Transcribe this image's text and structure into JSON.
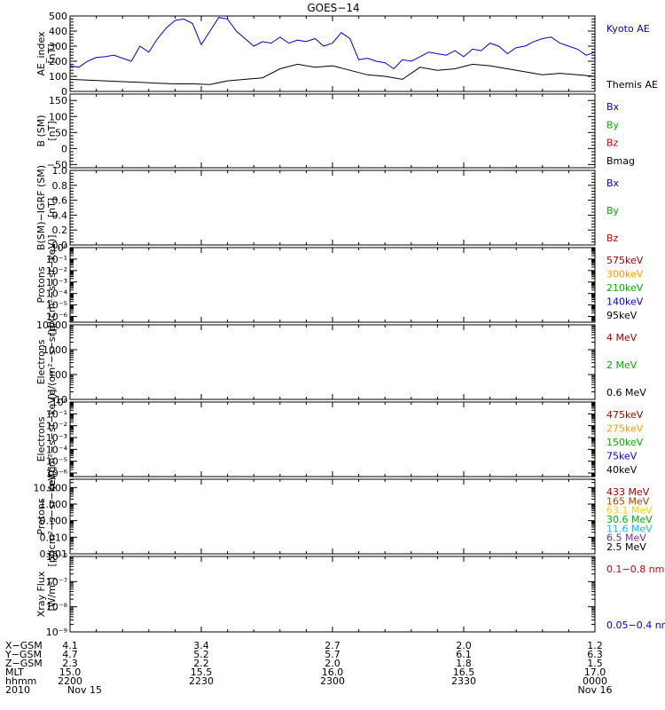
{
  "title": "GOES−14",
  "colors": {
    "black": "#000000",
    "blue": "#0000cc",
    "green": "#00b000",
    "red": "#cc0000",
    "orange": "#ff9900",
    "yellow": "#e8d800",
    "cyan": "#00bfff",
    "purple": "#6a2c9a",
    "darkred": "#a00000",
    "brown": "#b04000"
  },
  "chart_data": [
    {
      "panel": "ae",
      "type": "line",
      "ylabel": "AE_index",
      "yunit": "[nT]",
      "ylim": [
        0,
        500
      ],
      "yticks": [
        "0",
        "100",
        "200",
        "300",
        "400",
        "500"
      ],
      "yticks_values": [
        0,
        100,
        200,
        300,
        400,
        500
      ],
      "scale": "linear",
      "xlim": [
        0,
        120
      ],
      "series": [
        {
          "name": "Kyoto AE",
          "color": "blue",
          "x": [
            0,
            2,
            4,
            6,
            8,
            10,
            12,
            14,
            16,
            18,
            20,
            22,
            24,
            26,
            28,
            30,
            32,
            34,
            36,
            38,
            40,
            42,
            44,
            46,
            48,
            50,
            52,
            54,
            56,
            58,
            60,
            62,
            64,
            66,
            68,
            70,
            72,
            74,
            76,
            78,
            80,
            82,
            84,
            86,
            88,
            90,
            92,
            94,
            96,
            98,
            100,
            102,
            104,
            106,
            108,
            110,
            112,
            114,
            116,
            118,
            120
          ],
          "y": [
            170,
            160,
            200,
            225,
            230,
            240,
            220,
            200,
            300,
            260,
            350,
            420,
            470,
            480,
            450,
            310,
            400,
            490,
            480,
            400,
            350,
            300,
            330,
            320,
            360,
            320,
            340,
            330,
            350,
            300,
            320,
            390,
            350,
            210,
            220,
            200,
            190,
            150,
            210,
            200,
            230,
            260,
            250,
            240,
            270,
            230,
            280,
            270,
            320,
            300,
            250,
            290,
            300,
            330,
            350,
            360,
            320,
            300,
            280,
            240,
            260
          ]
        },
        {
          "name": "Themis AE",
          "color": "black",
          "x": [
            0,
            4,
            8,
            12,
            16,
            20,
            24,
            28,
            32,
            36,
            40,
            44,
            48,
            52,
            56,
            60,
            64,
            68,
            72,
            76,
            80,
            84,
            88,
            92,
            96,
            100,
            104,
            108,
            112,
            116,
            120
          ],
          "y": [
            80,
            75,
            70,
            65,
            60,
            55,
            50,
            50,
            45,
            70,
            80,
            90,
            150,
            180,
            160,
            170,
            140,
            110,
            100,
            80,
            160,
            140,
            150,
            180,
            170,
            150,
            130,
            110,
            120,
            110,
            100
          ]
        }
      ]
    },
    {
      "panel": "b",
      "type": "line",
      "ylabel": "B (SM)",
      "yunit": "[nT]",
      "ylim": [
        -60,
        170
      ],
      "yticks": [
        "−50",
        "0",
        "50",
        "100",
        "150"
      ],
      "yticks_values": [
        -50,
        0,
        50,
        100,
        150
      ],
      "scale": "linear",
      "series": [
        {
          "name": "Bx",
          "color": "blue"
        },
        {
          "name": "By",
          "color": "green"
        },
        {
          "name": "Bz",
          "color": "red"
        },
        {
          "name": "Bmag",
          "color": "black"
        }
      ]
    },
    {
      "panel": "igrf",
      "type": "line",
      "ylabel": "B(SM)−IGRF (SM)",
      "yunit": "[nT]",
      "ylim": [
        0,
        1
      ],
      "yticks": [
        "0.0",
        "0.2",
        "0.4",
        "0.6",
        "0.8",
        "1.0"
      ],
      "yticks_values": [
        0,
        0.2,
        0.4,
        0.6,
        0.8,
        1.0
      ],
      "scale": "linear",
      "series": [
        {
          "name": "Bx",
          "color": "blue"
        },
        {
          "name": "By",
          "color": "green"
        },
        {
          "name": "Bz",
          "color": "red"
        }
      ]
    },
    {
      "panel": "protons1",
      "type": "line",
      "ylabel": "Protons",
      "yunit": "[p/(cm²−s−sr−keV)]",
      "ylim": [
        -6.5,
        0
      ],
      "yticks": [
        "10⁻⁶",
        "10⁻⁵",
        "10⁻⁴",
        "10⁻³",
        "10⁻²",
        "10⁻¹",
        "10⁰"
      ],
      "yticks_values": [
        -6,
        -5,
        -4,
        -3,
        -2,
        -1,
        0
      ],
      "scale": "log",
      "series": [
        {
          "name": "575keV",
          "color": "darkred"
        },
        {
          "name": "300keV",
          "color": "orange"
        },
        {
          "name": "210keV",
          "color": "green"
        },
        {
          "name": "140keV",
          "color": "blue"
        },
        {
          "name": "95keV",
          "color": "black"
        }
      ]
    },
    {
      "panel": "electrons1",
      "type": "line",
      "ylabel": "Electrons",
      "yunit": "[e/(cm²−s−sr)]",
      "ylim": [
        1,
        4
      ],
      "yticks": [
        "10",
        "100",
        "1000",
        "10000"
      ],
      "yticks_values": [
        1,
        2,
        3,
        4
      ],
      "scale": "log",
      "series": [
        {
          "name": "4 MeV",
          "color": "darkred"
        },
        {
          "name": "2 MeV",
          "color": "green"
        },
        {
          "name": "0.6 MeV",
          "color": "black"
        }
      ]
    },
    {
      "panel": "electrons2",
      "type": "line",
      "ylabel": "Electrons",
      "yunit": "[e/(cm²−s−sr−keV)]",
      "ylim": [
        -6.3,
        0
      ],
      "yticks": [
        "10⁻⁶",
        "10⁻⁵",
        "10⁻⁴",
        "10⁻³",
        "10⁻²",
        "10⁻¹",
        "10⁰"
      ],
      "yticks_values": [
        -6,
        -5,
        -4,
        -3,
        -2,
        -1,
        0
      ],
      "scale": "log",
      "series": [
        {
          "name": "475keV",
          "color": "darkred"
        },
        {
          "name": "275keV",
          "color": "orange"
        },
        {
          "name": "150keV",
          "color": "green"
        },
        {
          "name": "75keV",
          "color": "blue"
        },
        {
          "name": "40keV",
          "color": "black"
        }
      ]
    },
    {
      "panel": "protons2",
      "type": "line",
      "ylabel": "Protons",
      "yunit": "[p/(cm²−s−sr−keV)]",
      "ylim": [
        -3,
        1.5
      ],
      "yticks": [
        "0.001",
        "0.010",
        "0.100",
        "1.000",
        "10.000"
      ],
      "yticks_values": [
        -3,
        -2,
        -1,
        0,
        1
      ],
      "scale": "log",
      "series": [
        {
          "name": "433 MeV",
          "color": "darkred"
        },
        {
          "name": "165 MeV",
          "color": "brown"
        },
        {
          "name": "63.1 MeV",
          "color": "yellow"
        },
        {
          "name": "30.6 MeV",
          "color": "green"
        },
        {
          "name": "11.6 MeV",
          "color": "cyan"
        },
        {
          "name": "6.5 MeV",
          "color": "purple"
        },
        {
          "name": "2.5 MeV",
          "color": "black"
        }
      ]
    },
    {
      "panel": "xray",
      "type": "line",
      "ylabel": "Xray Flux",
      "yunit": "[W/m²]",
      "ylim": [
        -9,
        -6
      ],
      "yticks": [
        "10⁻⁹",
        "10⁻⁸",
        "10⁻⁷",
        "10⁻⁶"
      ],
      "yticks_values": [
        -9,
        -8,
        -7,
        -6
      ],
      "scale": "log",
      "series": [
        {
          "name": "0.1−0.8 nm",
          "color": "red"
        },
        {
          "name": "0.05−0.4 nm",
          "color": "blue"
        }
      ]
    }
  ],
  "x_axis": {
    "xlim": [
      0,
      120
    ],
    "minor_ticks": [
      0,
      6,
      12,
      18,
      24,
      30,
      36,
      42,
      48,
      54,
      60,
      66,
      72,
      78,
      84,
      90,
      96,
      102,
      108,
      114,
      120
    ],
    "major_ticks": [
      0,
      30,
      60,
      90,
      120
    ],
    "row_labels": [
      "X−GSM",
      "Y−GSM",
      "Z−GSM",
      "MLT",
      "hhmm",
      "2010"
    ],
    "columns": [
      {
        "x": 0,
        "values": [
          "4.1",
          "4.7",
          "2.3",
          "15.0",
          "2200",
          "Nov 15"
        ]
      },
      {
        "x": 30,
        "values": [
          "3.4",
          "5.2",
          "2.2",
          "15.5",
          "2230",
          ""
        ]
      },
      {
        "x": 60,
        "values": [
          "2.7",
          "5.7",
          "2.0",
          "16.0",
          "2300",
          ""
        ]
      },
      {
        "x": 90,
        "values": [
          "2.0",
          "6.1",
          "1.8",
          "16.5",
          "2330",
          ""
        ]
      },
      {
        "x": 120,
        "values": [
          "1.2",
          "6.3",
          "1.5",
          "17.0",
          "0000",
          "Nov 16"
        ]
      }
    ]
  }
}
